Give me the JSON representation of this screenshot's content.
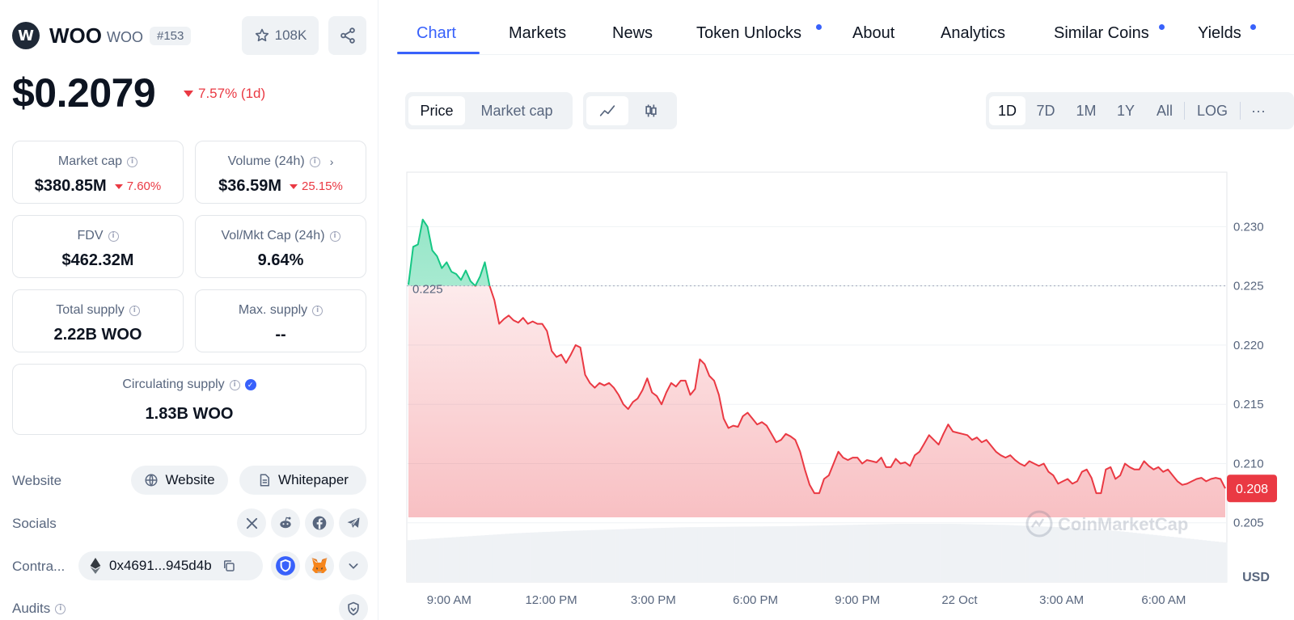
{
  "coin": {
    "logo_text": "W",
    "name": "WOO",
    "symbol": "WOO",
    "rank": "#153",
    "watchlist_count": "108K",
    "price": "$0.2079",
    "price_change": "7.57% (1d)"
  },
  "stats": {
    "market_cap": {
      "label": "Market cap",
      "value": "$380.85M",
      "change": "7.60%"
    },
    "volume": {
      "label": "Volume (24h)",
      "value": "$36.59M",
      "change": "25.15%"
    },
    "fdv": {
      "label": "FDV",
      "value": "$462.32M"
    },
    "vol_mkt_cap": {
      "label": "Vol/Mkt Cap (24h)",
      "value": "9.64%"
    },
    "total_supply": {
      "label": "Total supply",
      "value": "2.22B WOO"
    },
    "max_supply": {
      "label": "Max. supply",
      "value": "--"
    },
    "circulating_supply": {
      "label": "Circulating supply",
      "value": "1.83B WOO"
    }
  },
  "links": {
    "website_label": "Website",
    "website_button": "Website",
    "whitepaper_button": "Whitepaper",
    "socials_label": "Socials",
    "contracts_label": "Contra...",
    "contract_address": "0x4691...945d4b",
    "audits_label": "Audits"
  },
  "tabs": [
    {
      "label": "Chart",
      "active": true,
      "dot": false
    },
    {
      "label": "Markets",
      "active": false,
      "dot": false
    },
    {
      "label": "News",
      "active": false,
      "dot": false
    },
    {
      "label": "Token Unlocks",
      "active": false,
      "dot": true
    },
    {
      "label": "About",
      "active": false,
      "dot": false
    },
    {
      "label": "Analytics",
      "active": false,
      "dot": false
    },
    {
      "label": "Similar Coins",
      "active": false,
      "dot": true
    },
    {
      "label": "Yields",
      "active": false,
      "dot": true
    }
  ],
  "chart_controls": {
    "price_label": "Price",
    "market_cap_label": "Market cap",
    "ranges": [
      "1D",
      "7D",
      "1M",
      "1Y",
      "All"
    ],
    "active_range": "1D",
    "log_label": "LOG",
    "more_label": "···"
  },
  "chart_data": {
    "type": "line",
    "series": [
      {
        "values": [
          0.2251,
          0.2283,
          0.2285,
          0.2306,
          0.23,
          0.228,
          0.2275,
          0.2265,
          0.227,
          0.2262,
          0.226,
          0.2255,
          0.2263,
          0.2254,
          0.225,
          0.2258,
          0.227,
          0.225,
          0.2238,
          0.2218,
          0.2222,
          0.2225,
          0.2221,
          0.2219,
          0.2223,
          0.2218,
          0.222,
          0.2218,
          0.2218,
          0.2212,
          0.2195,
          0.219,
          0.2192,
          0.2185,
          0.2192,
          0.22,
          0.2198,
          0.2175,
          0.2168,
          0.2164,
          0.2168,
          0.2166,
          0.2168,
          0.2164,
          0.2158,
          0.215,
          0.2146,
          0.2152,
          0.2155,
          0.2162,
          0.2172,
          0.216,
          0.2157,
          0.215,
          0.216,
          0.2168,
          0.2165,
          0.217,
          0.217,
          0.2158,
          0.2163,
          0.2188,
          0.2184,
          0.2174,
          0.217,
          0.2158,
          0.2138,
          0.213,
          0.2132,
          0.2131,
          0.214,
          0.2143,
          0.2138,
          0.2133,
          0.2135,
          0.2132,
          0.2125,
          0.2118,
          0.212,
          0.2125,
          0.2123,
          0.212,
          0.211,
          0.2095,
          0.2082,
          0.2075,
          0.2075,
          0.2087,
          0.209,
          0.21,
          0.211,
          0.2105,
          0.2103,
          0.2105,
          0.2105,
          0.21,
          0.2103,
          0.2102,
          0.2101,
          0.2105,
          0.2097,
          0.2097,
          0.2104,
          0.21,
          0.2101,
          0.2098,
          0.2107,
          0.211,
          0.2117,
          0.2124,
          0.212,
          0.2116,
          0.2125,
          0.2133,
          0.2127,
          0.2126,
          0.2125,
          0.2124,
          0.212,
          0.2122,
          0.2118,
          0.212,
          0.2115,
          0.211,
          0.2107,
          0.2105,
          0.2107,
          0.2103,
          0.21,
          0.2098,
          0.2102,
          0.21,
          0.2098,
          0.21,
          0.2093,
          0.209,
          0.2083,
          0.2085,
          0.2087,
          0.2083,
          0.2085,
          0.2093,
          0.2095,
          0.2088,
          0.2075,
          0.2075,
          0.2095,
          0.2097,
          0.2087,
          0.209,
          0.21,
          0.2097,
          0.2095,
          0.2095,
          0.2102,
          0.2098,
          0.2095,
          0.2097,
          0.2093,
          0.2095,
          0.209,
          0.2085,
          0.2082,
          0.2083,
          0.2085,
          0.2087,
          0.2088,
          0.2085,
          0.2087,
          0.2088,
          0.2087,
          0.2079
        ]
      }
    ],
    "reference_price": "0.225",
    "reference_value": 0.225,
    "last_price": "0.208",
    "last_value": 0.2079,
    "ylim": [
      0.2,
      0.2346
    ],
    "y_ticks": [
      0.23,
      0.225,
      0.22,
      0.215,
      0.21,
      0.205
    ],
    "y_tick_labels": [
      "0.230",
      "0.225",
      "0.220",
      "0.215",
      "0.210",
      "0.205"
    ],
    "x_tick_labels": [
      "9:00 AM",
      "12:00 PM",
      "3:00 PM",
      "6:00 PM",
      "9:00 PM",
      "22 Oct",
      "3:00 AM",
      "6:00 AM"
    ],
    "x_tick_positions": [
      0.0516,
      0.1761,
      0.3006,
      0.4251,
      0.5495,
      0.674,
      0.7985,
      0.923
    ],
    "volume_levels": [
      0.72,
      0.78,
      0.84,
      0.88,
      0.91,
      0.94,
      0.95,
      0.96,
      0.98,
      1.0,
      1.0,
      0.98,
      0.94,
      0.88,
      0.78,
      0.68
    ],
    "unit": "USD",
    "watermark": "CoinMarketCap",
    "up_color": "#16c784",
    "down_color": "#ea3943"
  }
}
